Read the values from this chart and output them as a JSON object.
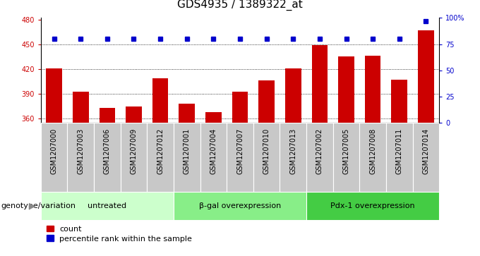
{
  "title": "GDS4935 / 1389322_at",
  "samples": [
    "GSM1207000",
    "GSM1207003",
    "GSM1207006",
    "GSM1207009",
    "GSM1207012",
    "GSM1207001",
    "GSM1207004",
    "GSM1207007",
    "GSM1207010",
    "GSM1207013",
    "GSM1207002",
    "GSM1207005",
    "GSM1207008",
    "GSM1207011",
    "GSM1207014"
  ],
  "bar_values": [
    421,
    393,
    373,
    375,
    409,
    378,
    368,
    393,
    406,
    421,
    449,
    435,
    436,
    407,
    467
  ],
  "percentile_values": [
    80,
    80,
    80,
    80,
    80,
    80,
    80,
    80,
    80,
    80,
    80,
    80,
    80,
    80,
    97
  ],
  "bar_color": "#cc0000",
  "dot_color": "#0000cc",
  "ylim_left": [
    355,
    482
  ],
  "ylim_right": [
    0,
    100
  ],
  "yticks_left": [
    360,
    390,
    420,
    450,
    480
  ],
  "yticks_right": [
    0,
    25,
    50,
    75,
    100
  ],
  "yticklabels_right": [
    "0",
    "25",
    "50",
    "75",
    "100%"
  ],
  "groups": [
    {
      "label": "untreated",
      "start": 0,
      "end": 5,
      "color": "#ccffcc"
    },
    {
      "label": "β-gal overexpression",
      "start": 5,
      "end": 10,
      "color": "#88ee88"
    },
    {
      "label": "Pdx-1 overexpression",
      "start": 10,
      "end": 15,
      "color": "#44cc44"
    }
  ],
  "group_label": "genotype/variation",
  "legend_count_label": "count",
  "legend_percentile_label": "percentile rank within the sample",
  "bar_width": 0.6,
  "tick_fontsize": 7,
  "label_fontsize": 8,
  "title_fontsize": 11,
  "cell_bg": "#c8c8c8"
}
